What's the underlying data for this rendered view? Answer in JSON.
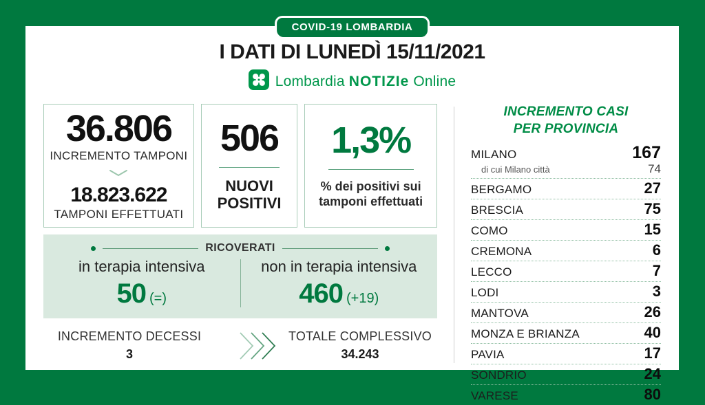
{
  "badge": "COVID-19 LOMBARDIA",
  "title": "I DATI DI LUNEDÌ 15/11/2021",
  "logo": {
    "lombardia": "Lombardia",
    "notizie": "NOTIZIe",
    "online": "Online"
  },
  "panels": {
    "tamponi": {
      "increment": "36.806",
      "increment_label": "INCREMENTO TAMPONI",
      "total": "18.823.622",
      "total_label": "TAMPONI EFFETTUATI"
    },
    "positivi": {
      "value": "506",
      "label_line1": "NUOVI",
      "label_line2": "POSITIVI"
    },
    "percentuale": {
      "value": "1,3%",
      "label_line1": "% dei positivi sui",
      "label_line2": "tamponi effettuati"
    }
  },
  "ricoverati": {
    "title": "RICOVERATI",
    "intensiva": {
      "label": "in terapia intensiva",
      "value": "50",
      "delta": "(=)"
    },
    "non_intensiva": {
      "label": "non in terapia intensiva",
      "value": "460",
      "delta": "(+19)"
    }
  },
  "decessi": {
    "label": "INCREMENTO DECESSI",
    "value": "3"
  },
  "totale": {
    "label": "TOTALE COMPLESSIVO",
    "value": "34.243"
  },
  "province": {
    "heading_line1": "INCREMENTO CASI",
    "heading_line2": "PER PROVINCIA",
    "rows": [
      {
        "name": "MILANO",
        "value": "167",
        "sub_name": "di cui Milano città",
        "sub_value": "74"
      },
      {
        "name": "BERGAMO",
        "value": "27"
      },
      {
        "name": "BRESCIA",
        "value": "75"
      },
      {
        "name": "COMO",
        "value": "15"
      },
      {
        "name": "CREMONA",
        "value": "6"
      },
      {
        "name": "LECCO",
        "value": "7"
      },
      {
        "name": "LODI",
        "value": "3"
      },
      {
        "name": "MANTOVA",
        "value": "26"
      },
      {
        "name": "MONZA E BRIANZA",
        "value": "40"
      },
      {
        "name": "PAVIA",
        "value": "17"
      },
      {
        "name": "SONDRIO",
        "value": "24"
      },
      {
        "name": "VARESE",
        "value": "80"
      }
    ]
  },
  "colors": {
    "frame_green": "#00793F",
    "accent_green": "#00793F",
    "logo_green": "#00974B",
    "heading_green": "#008C46",
    "band_background": "#D9E9DF",
    "dotted_separator": "#8FBEA2",
    "text_dark": "#1a1a1a"
  },
  "chart_data": {
    "type": "table",
    "title": "INCREMENTO CASI PER PROVINCIA",
    "categories": [
      "MILANO",
      "di cui Milano città",
      "BERGAMO",
      "BRESCIA",
      "COMO",
      "CREMONA",
      "LECCO",
      "LODI",
      "MANTOVA",
      "MONZA E BRIANZA",
      "PAVIA",
      "SONDRIO",
      "VARESE"
    ],
    "values": [
      167,
      74,
      27,
      75,
      15,
      6,
      7,
      3,
      26,
      40,
      17,
      24,
      80
    ],
    "summary": {
      "incremento_tamponi": 36806,
      "tamponi_effettuati": 18823622,
      "nuovi_positivi": 506,
      "percentuale_positivi": "1,3%",
      "terapia_intensiva": 50,
      "terapia_intensiva_delta": "=",
      "non_terapia_intensiva": 460,
      "non_terapia_intensiva_delta": "+19",
      "incremento_decessi": 3,
      "totale_complessivo": 34243
    }
  }
}
